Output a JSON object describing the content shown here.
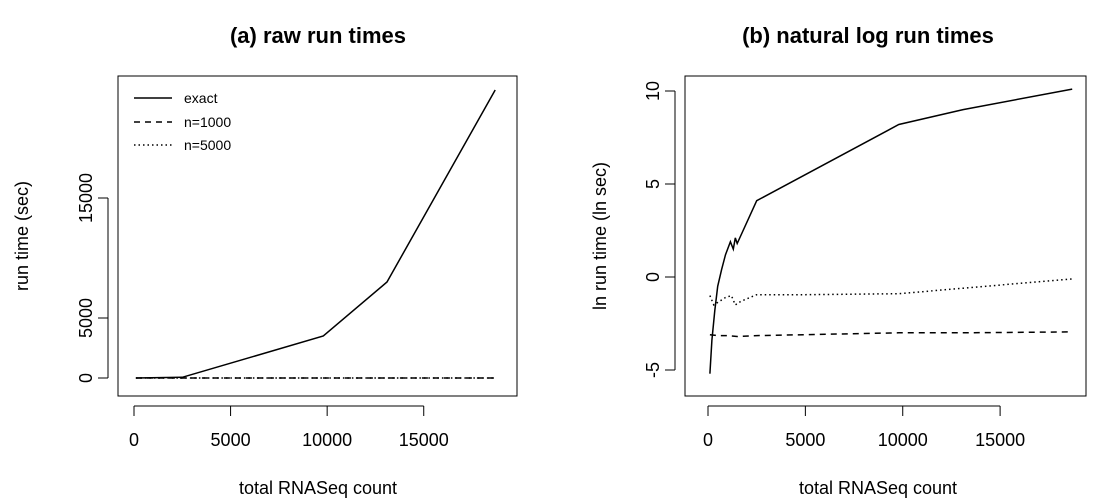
{
  "chart_data": [
    {
      "type": "line",
      "title": "(a) raw run times",
      "xlabel": "total RNASeq count",
      "ylabel": "run time (sec)",
      "xlim": [
        0,
        19000
      ],
      "ylim": [
        0,
        24000
      ],
      "xticks": [
        0,
        5000,
        10000,
        15000
      ],
      "xtick_labels": [
        "0",
        "5000",
        "10000",
        "15000"
      ],
      "yticks": [
        0,
        5000,
        15000
      ],
      "ytick_labels": [
        "0",
        "5000",
        "15000"
      ],
      "grid": false,
      "legend": "top-left",
      "series": [
        {
          "name": "exact",
          "style": "solid",
          "x": [
            100,
            2500,
            9800,
            13100,
            18700
          ],
          "y": [
            0,
            60,
            3500,
            8000,
            24000
          ]
        },
        {
          "name": "n=1000",
          "style": "dashed",
          "x": [
            100,
            2500,
            9800,
            13100,
            18700
          ],
          "y": [
            0.04,
            0.04,
            0.05,
            0.05,
            0.05
          ]
        },
        {
          "name": "n=5000",
          "style": "dotted",
          "x": [
            100,
            2500,
            9800,
            13100,
            18700
          ],
          "y": [
            0.25,
            0.35,
            0.4,
            0.6,
            0.9
          ]
        }
      ]
    },
    {
      "type": "line",
      "title": "(b) natural log run times",
      "xlabel": "total RNASeq count",
      "ylabel": "ln run time (ln sec)",
      "xlim": [
        0,
        19000
      ],
      "ylim": [
        -6,
        10.5
      ],
      "xticks": [
        0,
        5000,
        10000,
        15000
      ],
      "xtick_labels": [
        "0",
        "5000",
        "10000",
        "15000"
      ],
      "yticks": [
        -5,
        0,
        5,
        10
      ],
      "ytick_labels": [
        "-5",
        "0",
        "5",
        "10"
      ],
      "grid": false,
      "legend": "none",
      "series": [
        {
          "name": "exact",
          "style": "solid",
          "x": [
            100,
            200,
            350,
            500,
            700,
            900,
            1150,
            1300,
            1400,
            1500,
            2500,
            9800,
            13100,
            18700
          ],
          "y": [
            -5.2,
            -3.4,
            -1.8,
            -0.5,
            0.4,
            1.2,
            1.9,
            1.5,
            2.1,
            1.8,
            4.1,
            8.2,
            9.0,
            10.1
          ],
          "interactive": false
        },
        {
          "name": "n=1000",
          "style": "dashed",
          "x": [
            100,
            500,
            1000,
            1500,
            2500,
            5000,
            9800,
            13100,
            18700
          ],
          "y": [
            -3.1,
            -3.15,
            -3.15,
            -3.2,
            -3.15,
            -3.1,
            -3.0,
            -3.0,
            -2.95
          ]
        },
        {
          "name": "n=5000",
          "style": "dotted",
          "x": [
            100,
            300,
            600,
            900,
            1200,
            1400,
            1700,
            2500,
            5000,
            9800,
            13100,
            18700
          ],
          "y": [
            -1.0,
            -1.5,
            -1.3,
            -1.1,
            -1.0,
            -1.5,
            -1.3,
            -0.95,
            -0.95,
            -0.9,
            -0.6,
            -0.1
          ]
        }
      ]
    }
  ]
}
